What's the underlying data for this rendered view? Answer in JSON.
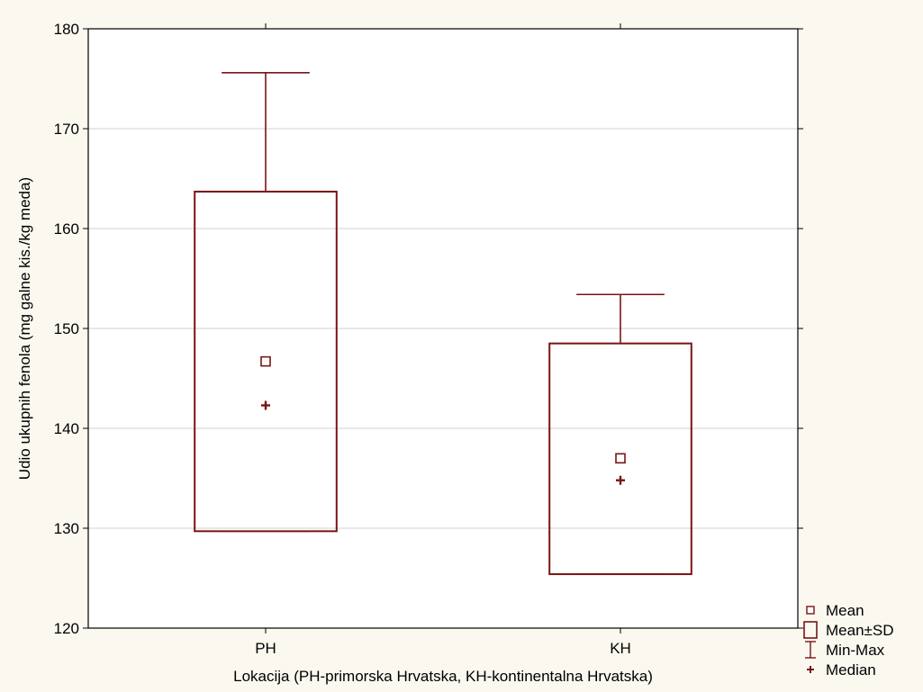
{
  "chart_data": {
    "type": "box",
    "xlabel": "Lokacija (PH-primorska Hrvatska, KH-kontinentalna Hrvatska)",
    "ylabel": "Udio ukupnih fenola (mg galne kis./kg meda)",
    "ylim": [
      120,
      180
    ],
    "yticks": [
      120,
      130,
      140,
      150,
      160,
      170,
      180
    ],
    "grid": true,
    "legend_position": "right-bottom",
    "colors": {
      "series": "#7b1414",
      "grid": "#d0d0d0",
      "plot_bg": "#ffffff",
      "page_bg": "#fbf8f0"
    },
    "categories": [
      "PH",
      "KH"
    ],
    "groups": [
      {
        "label": "PH",
        "mean": 146.7,
        "sd_low": 129.7,
        "sd_high": 163.7,
        "min": 129.7,
        "max": 175.6,
        "median": 142.3
      },
      {
        "label": "KH",
        "mean": 137.0,
        "sd_low": 125.4,
        "sd_high": 148.5,
        "min": 125.4,
        "max": 153.4,
        "median": 134.8
      }
    ],
    "legend": [
      {
        "symbol": "small-square",
        "label": "Mean"
      },
      {
        "symbol": "box",
        "label": "Mean±SD"
      },
      {
        "symbol": "whisker",
        "label": "Min-Max"
      },
      {
        "symbol": "plus",
        "label": "Median"
      }
    ]
  }
}
